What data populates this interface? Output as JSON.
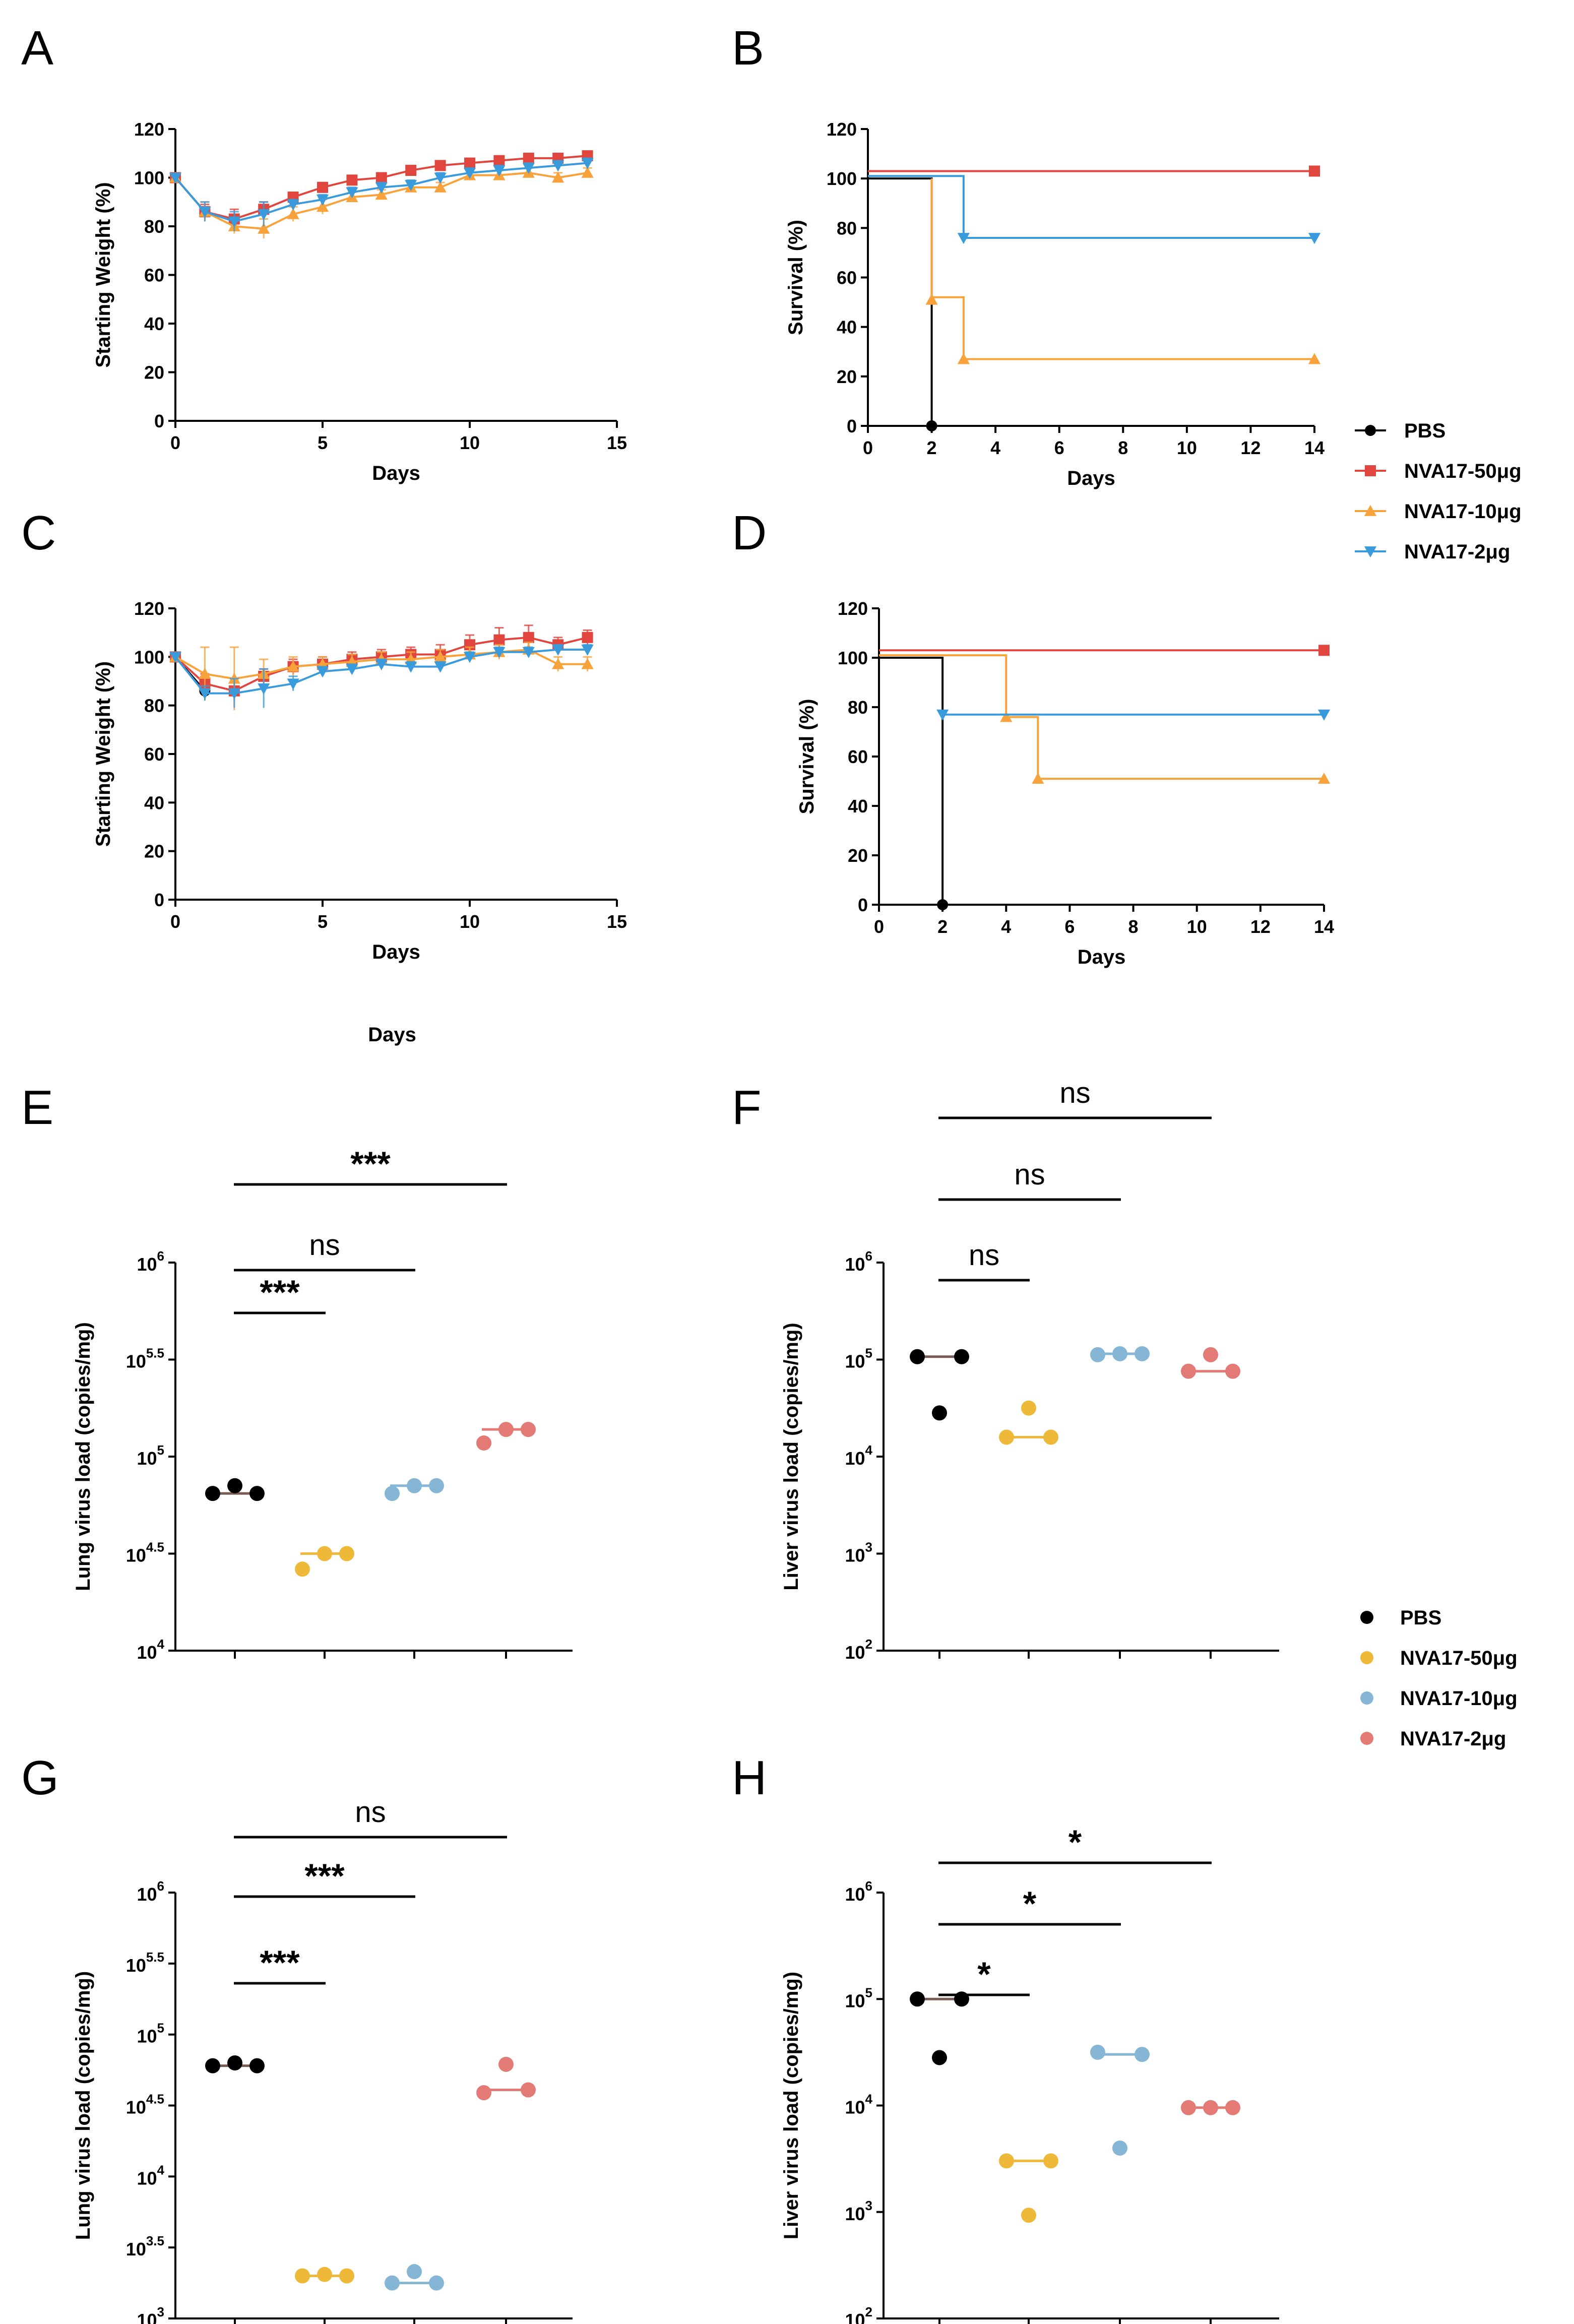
{
  "colors": {
    "pbs": "#000000",
    "nva50_line": "#e0463e",
    "nva10_line": "#f7a23a",
    "nva2_line": "#3a9bdc",
    "nva50_dot": "#eeb939",
    "nva10_dot": "#86b6d6",
    "nva2_dot": "#e47a76",
    "pbs_median": "#7a5a55"
  },
  "legend_top": {
    "items": [
      {
        "label": "PBS",
        "marker": "circle",
        "color": "#000000"
      },
      {
        "label": "NVA17-50μg",
        "marker": "square",
        "color": "#e0463e"
      },
      {
        "label": "NVA17-10μg",
        "marker": "triangle",
        "color": "#f7a23a"
      },
      {
        "label": "NVA17-2μg",
        "marker": "triangle-down",
        "color": "#3a9bdc"
      }
    ]
  },
  "legend_bottom": {
    "items": [
      {
        "label": "PBS",
        "color": "#000000"
      },
      {
        "label": "NVA17-50μg",
        "color": "#eeb939"
      },
      {
        "label": "NVA17-10μg",
        "color": "#86b6d6"
      },
      {
        "label": "NVA17-2μg",
        "color": "#e47a76"
      }
    ]
  },
  "stray_label": "Days",
  "chart_data": [
    {
      "id": "A",
      "letter": "A",
      "type": "line",
      "ylabel": "Starting Weight  (%)",
      "xlabel": "Days",
      "xlim": [
        0,
        15
      ],
      "ylim": [
        0,
        120
      ],
      "xticks": [
        0,
        5,
        10,
        15
      ],
      "yticks": [
        0,
        20,
        40,
        60,
        80,
        100,
        120
      ],
      "series": [
        {
          "name": "PBS",
          "marker": "circle",
          "color": "#000000",
          "x": [
            0,
            1
          ],
          "y": [
            100,
            86
          ],
          "err": [
            0,
            2
          ]
        },
        {
          "name": "NVA17-50μg",
          "marker": "square",
          "color": "#e0463e",
          "x": [
            0,
            1,
            2,
            3,
            4,
            5,
            6,
            7,
            8,
            9,
            10,
            11,
            12,
            13,
            14
          ],
          "y": [
            100,
            86,
            83,
            87,
            92,
            96,
            99,
            100,
            103,
            105,
            106,
            107,
            108,
            108,
            109
          ],
          "err": [
            0,
            3,
            4,
            3,
            2,
            2,
            1,
            1,
            1,
            1,
            1,
            1,
            1,
            1,
            1
          ]
        },
        {
          "name": "NVA17-10μg",
          "marker": "triangle",
          "color": "#f7a23a",
          "x": [
            0,
            1,
            2,
            3,
            4,
            5,
            6,
            7,
            8,
            9,
            10,
            11,
            12,
            13,
            14
          ],
          "y": [
            100,
            86,
            80,
            79,
            85,
            88,
            92,
            93,
            96,
            96,
            101,
            101,
            102,
            100,
            102
          ],
          "err": [
            0,
            4,
            3,
            4,
            3,
            3,
            2,
            2,
            2,
            2,
            2,
            2,
            2,
            2,
            2
          ]
        },
        {
          "name": "NVA17-2μg",
          "marker": "triangle-down",
          "color": "#3a9bdc",
          "x": [
            0,
            1,
            2,
            3,
            4,
            5,
            6,
            7,
            8,
            9,
            10,
            11,
            12,
            13,
            14
          ],
          "y": [
            100,
            86,
            82,
            85,
            89,
            91,
            94,
            96,
            97,
            100,
            102,
            103,
            104,
            105,
            106
          ],
          "err": [
            0,
            4,
            4,
            5,
            2,
            2,
            2,
            2,
            2,
            2,
            2,
            2,
            2,
            2,
            2
          ]
        }
      ]
    },
    {
      "id": "B",
      "letter": "B",
      "type": "line",
      "step": true,
      "ylabel": "Survival (%)",
      "xlabel": "Days",
      "xlim": [
        0,
        14
      ],
      "ylim": [
        0,
        120
      ],
      "xticks": [
        0,
        2,
        4,
        6,
        8,
        10,
        12,
        14
      ],
      "yticks": [
        0,
        20,
        40,
        60,
        80,
        100,
        120
      ],
      "series": [
        {
          "name": "PBS",
          "marker": "circle",
          "color": "#000000",
          "x": [
            0,
            2,
            2
          ],
          "y": [
            100,
            100,
            0
          ],
          "markers": [
            [
              2,
              0
            ]
          ]
        },
        {
          "name": "NVA17-50μg",
          "marker": "square",
          "color": "#e0463e",
          "x": [
            0,
            14
          ],
          "y": [
            103,
            103
          ],
          "markers": [
            [
              14,
              103
            ]
          ]
        },
        {
          "name": "NVA17-10μg",
          "marker": "triangle",
          "color": "#f7a23a",
          "x": [
            2,
            2,
            3,
            3,
            14
          ],
          "y": [
            100,
            52,
            52,
            27,
            27
          ],
          "markers": [
            [
              2,
              51
            ],
            [
              3,
              27
            ],
            [
              14,
              27
            ]
          ]
        },
        {
          "name": "NVA17-2μg",
          "marker": "triangle-down",
          "color": "#3a9bdc",
          "x": [
            0,
            3,
            3,
            14
          ],
          "y": [
            101,
            101,
            76,
            76
          ],
          "markers": [
            [
              3,
              76
            ],
            [
              14,
              76
            ]
          ]
        }
      ]
    },
    {
      "id": "C",
      "letter": "C",
      "type": "line",
      "ylabel": "Starting Weight    (%)",
      "xlabel": "Days",
      "xlim": [
        0,
        15
      ],
      "ylim": [
        0,
        120
      ],
      "xticks": [
        0,
        5,
        10,
        15
      ],
      "yticks": [
        0,
        20,
        40,
        60,
        80,
        100,
        120
      ],
      "series": [
        {
          "name": "PBS",
          "marker": "circle",
          "color": "#000000",
          "x": [
            0,
            1
          ],
          "y": [
            100,
            86
          ],
          "err": [
            0,
            2
          ]
        },
        {
          "name": "NVA17-50μg",
          "marker": "square",
          "color": "#e0463e",
          "x": [
            0,
            1,
            2,
            3,
            4,
            5,
            6,
            7,
            8,
            9,
            10,
            11,
            12,
            13,
            14
          ],
          "y": [
            100,
            89,
            86,
            92,
            96,
            97,
            99,
            100,
            101,
            101,
            105,
            107,
            108,
            105,
            108
          ],
          "err": [
            0,
            4,
            4,
            3,
            3,
            3,
            3,
            3,
            3,
            4,
            4,
            5,
            5,
            3,
            3
          ]
        },
        {
          "name": "NVA17-10μg",
          "marker": "triangle",
          "color": "#f7a23a",
          "x": [
            0,
            1,
            2,
            3,
            4,
            5,
            6,
            7,
            8,
            9,
            10,
            11,
            12,
            13,
            14
          ],
          "y": [
            100,
            93,
            91,
            93,
            96,
            97,
            98,
            99,
            99,
            100,
            101,
            102,
            103,
            97,
            97
          ],
          "err": [
            0,
            11,
            13,
            6,
            4,
            3,
            3,
            3,
            3,
            3,
            3,
            3,
            3,
            3,
            3
          ]
        },
        {
          "name": "NVA17-2μg",
          "marker": "triangle-down",
          "color": "#3a9bdc",
          "x": [
            0,
            1,
            2,
            3,
            4,
            5,
            6,
            7,
            8,
            9,
            10,
            11,
            12,
            13,
            14
          ],
          "y": [
            100,
            85,
            85,
            87,
            89,
            94,
            95,
            97,
            96,
            96,
            100,
            102,
            102,
            103,
            103
          ],
          "err": [
            0,
            3,
            6,
            8,
            3,
            2,
            2,
            2,
            2,
            2,
            2,
            2,
            2,
            2,
            2
          ]
        }
      ]
    },
    {
      "id": "D",
      "letter": "D",
      "type": "line",
      "step": true,
      "ylabel": "Survival (%)",
      "xlabel": "Days",
      "xlim": [
        0,
        14
      ],
      "ylim": [
        0,
        120
      ],
      "xticks": [
        0,
        2,
        4,
        6,
        8,
        10,
        12,
        14
      ],
      "yticks": [
        0,
        20,
        40,
        60,
        80,
        100,
        120
      ],
      "series": [
        {
          "name": "PBS",
          "marker": "circle",
          "color": "#000000",
          "x": [
            0,
            2,
            2
          ],
          "y": [
            100,
            100,
            0
          ],
          "markers": [
            [
              2,
              0
            ]
          ]
        },
        {
          "name": "NVA17-50μg",
          "marker": "square",
          "color": "#e0463e",
          "x": [
            0,
            14
          ],
          "y": [
            103,
            103
          ],
          "markers": [
            [
              14,
              103
            ]
          ]
        },
        {
          "name": "NVA17-10μg",
          "marker": "triangle",
          "color": "#f7a23a",
          "x": [
            0,
            4,
            4,
            5,
            5,
            14
          ],
          "y": [
            101,
            101,
            76,
            76,
            51,
            51
          ],
          "markers": [
            [
              4,
              76
            ],
            [
              5,
              51
            ],
            [
              14,
              51
            ]
          ]
        },
        {
          "name": "NVA17-2μg",
          "marker": "triangle-down",
          "color": "#3a9bdc",
          "x": [
            2,
            14
          ],
          "y": [
            77,
            77
          ],
          "markers": [
            [
              2,
              77
            ],
            [
              14,
              77
            ]
          ]
        }
      ]
    },
    {
      "id": "E",
      "letter": "E",
      "type": "scatter",
      "ylabel": "Lung virus load (copies/mg)",
      "ylim": [
        4,
        6
      ],
      "yticks": [
        {
          "v": 4,
          "base": "10",
          "exp": "4"
        },
        {
          "v": 4.5,
          "base": "10",
          "exp": "4.5"
        },
        {
          "v": 5,
          "base": "10",
          "exp": "5"
        },
        {
          "v": 5.5,
          "base": "10",
          "exp": "5.5"
        },
        {
          "v": 6,
          "base": "10",
          "exp": "6"
        }
      ],
      "groups": [
        {
          "name": "PBS",
          "points": [
            4.81,
            4.85,
            4.81
          ],
          "median": 4.81
        },
        {
          "name": "NVA17-50μg",
          "points": [
            4.42,
            4.5,
            4.5
          ],
          "median": 4.5
        },
        {
          "name": "NVA17-10μg",
          "points": [
            4.81,
            4.85,
            4.85
          ],
          "median": 4.85
        },
        {
          "name": "NVA17-2μg",
          "points": [
            5.07,
            5.14,
            5.14
          ],
          "median": 5.14
        }
      ],
      "comparisons": [
        {
          "from": 0,
          "to": 1,
          "label": "***"
        },
        {
          "from": 0,
          "to": 2,
          "label": "ns"
        },
        {
          "from": 0,
          "to": 3,
          "label": "***"
        }
      ]
    },
    {
      "id": "F",
      "letter": "F",
      "type": "scatter",
      "ylabel": "Liver virus load (copies/mg)",
      "ylim": [
        2,
        6
      ],
      "yticks": [
        {
          "v": 2,
          "base": "10",
          "exp": "2"
        },
        {
          "v": 3,
          "base": "10",
          "exp": "3"
        },
        {
          "v": 4,
          "base": "10",
          "exp": "4"
        },
        {
          "v": 5,
          "base": "10",
          "exp": "5"
        },
        {
          "v": 6,
          "base": "10",
          "exp": "6"
        }
      ],
      "groups": [
        {
          "name": "PBS",
          "points": [
            5.03,
            4.45,
            5.03
          ],
          "median": 5.03
        },
        {
          "name": "NVA17-50μg",
          "points": [
            4.2,
            4.5,
            4.2
          ],
          "median": 4.2
        },
        {
          "name": "NVA17-10μg",
          "points": [
            5.05,
            5.06,
            5.06
          ],
          "median": 5.06
        },
        {
          "name": "NVA17-2μg",
          "points": [
            4.88,
            5.05,
            4.88
          ],
          "median": 4.88
        }
      ],
      "comparisons": [
        {
          "from": 0,
          "to": 1,
          "label": "ns"
        },
        {
          "from": 0,
          "to": 2,
          "label": "ns"
        },
        {
          "from": 0,
          "to": 3,
          "label": "ns"
        }
      ]
    },
    {
      "id": "G",
      "letter": "G",
      "type": "scatter",
      "ylabel": "Lung virus load (copies/mg)",
      "ylim": [
        3,
        6
      ],
      "yticks": [
        {
          "v": 3,
          "base": "10",
          "exp": "3"
        },
        {
          "v": 3.5,
          "base": "10",
          "exp": "3.5"
        },
        {
          "v": 4,
          "base": "10",
          "exp": "4"
        },
        {
          "v": 4.5,
          "base": "10",
          "exp": "4.5"
        },
        {
          "v": 5,
          "base": "10",
          "exp": "5"
        },
        {
          "v": 5.5,
          "base": "10",
          "exp": "5.5"
        },
        {
          "v": 6,
          "base": "10",
          "exp": "6"
        }
      ],
      "groups": [
        {
          "name": "PBS",
          "points": [
            4.78,
            4.8,
            4.78
          ],
          "median": 4.78
        },
        {
          "name": "NVA17-50μg",
          "points": [
            3.3,
            3.31,
            3.3
          ],
          "median": 3.3
        },
        {
          "name": "NVA17-10μg",
          "points": [
            3.25,
            3.33,
            3.25
          ],
          "median": 3.25
        },
        {
          "name": "NVA17-2μg",
          "points": [
            4.59,
            4.79,
            4.61
          ],
          "median": 4.61
        }
      ],
      "comparisons": [
        {
          "from": 0,
          "to": 1,
          "label": "***"
        },
        {
          "from": 0,
          "to": 2,
          "label": "***"
        },
        {
          "from": 0,
          "to": 3,
          "label": "ns"
        }
      ]
    },
    {
      "id": "H",
      "letter": "H",
      "type": "scatter",
      "ylabel": "Liver virus load (copies/mg)",
      "ylim": [
        2,
        6
      ],
      "yticks": [
        {
          "v": 2,
          "base": "10",
          "exp": "2"
        },
        {
          "v": 3,
          "base": "10",
          "exp": "3"
        },
        {
          "v": 4,
          "base": "10",
          "exp": "4"
        },
        {
          "v": 5,
          "base": "10",
          "exp": "5"
        },
        {
          "v": 6,
          "base": "10",
          "exp": "6"
        }
      ],
      "groups": [
        {
          "name": "PBS",
          "points": [
            5.0,
            4.45,
            5.0
          ],
          "median": 5.0
        },
        {
          "name": "NVA17-50μg",
          "points": [
            3.48,
            2.97,
            3.48
          ],
          "median": 3.48
        },
        {
          "name": "NVA17-10μg",
          "points": [
            4.5,
            3.6,
            4.48
          ],
          "median": 4.48
        },
        {
          "name": "NVA17-2μg",
          "points": [
            3.98,
            3.98,
            3.98
          ],
          "median": 3.98
        }
      ],
      "comparisons": [
        {
          "from": 0,
          "to": 1,
          "label": "*"
        },
        {
          "from": 0,
          "to": 2,
          "label": "*"
        },
        {
          "from": 0,
          "to": 3,
          "label": "*"
        }
      ]
    }
  ]
}
